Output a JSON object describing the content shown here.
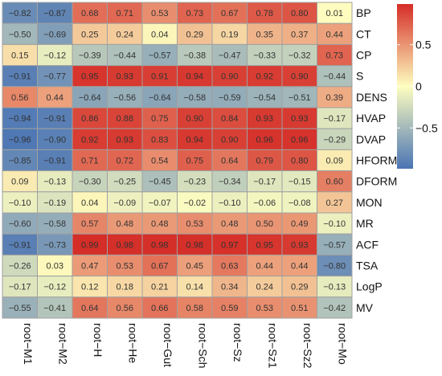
{
  "chart_data": {
    "type": "heatmap",
    "title": "",
    "xlabel": "",
    "ylabel": "",
    "columns": [
      "root−M1",
      "root−M2",
      "root−H",
      "root−He",
      "root−Gut",
      "root−Sch",
      "root−Sz",
      "root−Sz1",
      "root−Sz2",
      "root−Mo"
    ],
    "rows": [
      "BP",
      "CT",
      "CP",
      "S",
      "DENS",
      "HVAP",
      "DVAP",
      "HFORM",
      "DFORM",
      "MON",
      "MR",
      "ACF",
      "TSA",
      "LogP",
      "MV"
    ],
    "values": [
      [
        -0.82,
        -0.87,
        0.68,
        0.71,
        0.53,
        0.73,
        0.67,
        0.78,
        0.8,
        0.01
      ],
      [
        -0.5,
        -0.69,
        0.25,
        0.24,
        0.04,
        0.29,
        0.19,
        0.35,
        0.37,
        0.44
      ],
      [
        0.15,
        -0.12,
        -0.39,
        -0.44,
        -0.57,
        -0.38,
        -0.47,
        -0.33,
        -0.32,
        0.73
      ],
      [
        -0.91,
        -0.77,
        0.95,
        0.93,
        0.91,
        0.94,
        0.9,
        0.92,
        0.9,
        -0.44
      ],
      [
        0.56,
        0.44,
        -0.64,
        -0.56,
        -0.64,
        -0.58,
        -0.59,
        -0.54,
        -0.51,
        0.39
      ],
      [
        -0.94,
        -0.91,
        0.86,
        0.88,
        0.75,
        0.9,
        0.84,
        0.93,
        0.93,
        -0.17
      ],
      [
        -0.96,
        -0.9,
        0.92,
        0.93,
        0.83,
        0.94,
        0.9,
        0.96,
        0.96,
        -0.29
      ],
      [
        -0.85,
        -0.91,
        0.71,
        0.72,
        0.54,
        0.75,
        0.64,
        0.79,
        0.8,
        0.09
      ],
      [
        0.09,
        -0.13,
        -0.3,
        -0.25,
        -0.45,
        -0.23,
        -0.34,
        -0.17,
        -0.15,
        0.6
      ],
      [
        -0.1,
        -0.19,
        0.04,
        -0.09,
        -0.07,
        -0.02,
        -0.1,
        -0.06,
        -0.08,
        0.27
      ],
      [
        -0.6,
        -0.58,
        0.57,
        0.48,
        0.48,
        0.53,
        0.48,
        0.5,
        0.49,
        -0.1
      ],
      [
        -0.91,
        -0.73,
        0.99,
        0.98,
        0.98,
        0.98,
        0.97,
        0.95,
        0.93,
        -0.57
      ],
      [
        -0.26,
        0.03,
        0.47,
        0.53,
        0.67,
        0.45,
        0.63,
        0.44,
        0.44,
        -0.8
      ],
      [
        -0.17,
        -0.12,
        0.12,
        0.18,
        0.21,
        0.14,
        0.34,
        0.24,
        0.29,
        -0.13
      ],
      [
        -0.55,
        -0.41,
        0.64,
        0.56,
        0.66,
        0.58,
        0.59,
        0.53,
        0.51,
        -0.42
      ]
    ],
    "color_scale": {
      "range": [
        -0.99,
        0.99
      ],
      "ticks": [
        0.5,
        0,
        -0.5
      ],
      "tick_labels": [
        "0.5",
        "0",
        "−0.5"
      ],
      "colors": {
        "low": "#4a74b4",
        "mid": "#fefec0",
        "high": "#d52d27"
      }
    },
    "legend_placement": "right",
    "grid": true
  }
}
